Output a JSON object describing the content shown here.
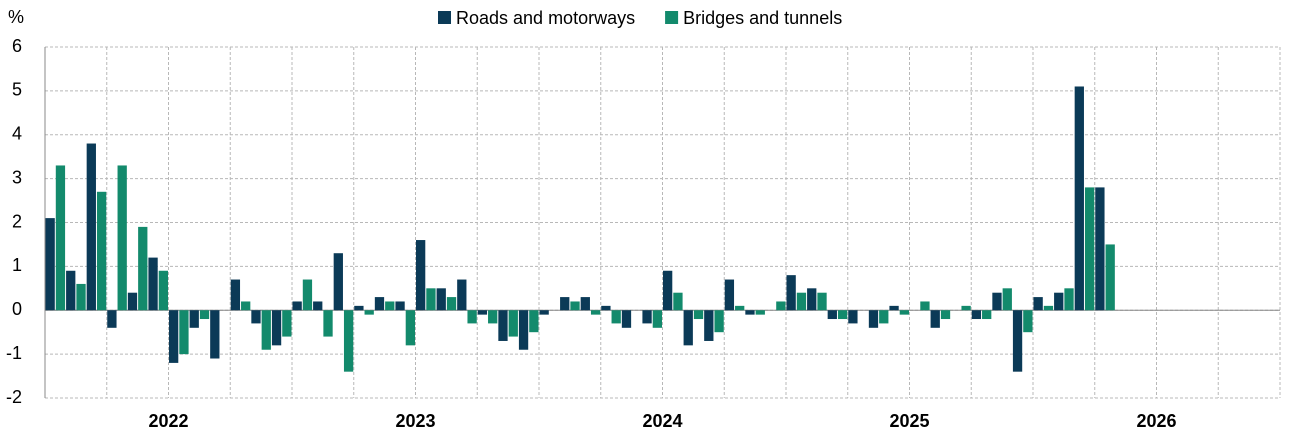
{
  "chart_data": {
    "type": "bar",
    "ylabel": "%",
    "categories": [
      null,
      null,
      null,
      null,
      null,
      null,
      null,
      null,
      null,
      null,
      null,
      null,
      null,
      null,
      null,
      null,
      null,
      null,
      null,
      null,
      null,
      null,
      null,
      null,
      null,
      null,
      null,
      null,
      null,
      null,
      null,
      null,
      null,
      null,
      null,
      null,
      null,
      null,
      null,
      null,
      null,
      null,
      null,
      null,
      null,
      null,
      null,
      null,
      null,
      null,
      null,
      null,
      null,
      null,
      null,
      null,
      null,
      null,
      null,
      null
    ],
    "year_labels": [
      "2022",
      "2023",
      "2024",
      "2025",
      "2026"
    ],
    "series": [
      {
        "name": "Roads and motorways",
        "color": "#0b3a57",
        "values": [
          2.1,
          0.9,
          3.8,
          -0.4,
          0.4,
          1.2,
          -1.2,
          -0.4,
          -1.1,
          0.7,
          -0.3,
          -0.8,
          0.2,
          0.2,
          1.3,
          0.1,
          0.3,
          0.2,
          1.6,
          0.5,
          0.7,
          -0.1,
          -0.7,
          -0.9,
          -0.1,
          0.3,
          0.3,
          0.1,
          -0.4,
          -0.3,
          0.9,
          -0.8,
          -0.7,
          0.7,
          -0.1,
          0,
          0.8,
          0.5,
          -0.2,
          -0.3,
          -0.4,
          0.1,
          0,
          -0.4,
          0,
          -0.2,
          0.4,
          -1.4,
          0.3,
          0.4,
          5.1,
          2.8,
          null,
          null,
          null,
          null,
          null,
          null,
          null,
          null
        ]
      },
      {
        "name": "Bridges and tunnels",
        "color": "#138a6c",
        "values": [
          3.3,
          0.6,
          2.7,
          3.3,
          1.9,
          0.9,
          -1.0,
          -0.2,
          0,
          0.2,
          -0.9,
          -0.6,
          0.7,
          -0.6,
          -1.4,
          -0.1,
          0.2,
          -0.8,
          0.5,
          0.3,
          -0.3,
          -0.3,
          -0.6,
          -0.5,
          0,
          0.2,
          -0.1,
          -0.3,
          0,
          -0.4,
          0.4,
          -0.2,
          -0.5,
          0.1,
          -0.1,
          0.2,
          0.4,
          0.4,
          -0.2,
          0,
          -0.3,
          -0.1,
          0.2,
          -0.2,
          0.1,
          -0.2,
          0.5,
          -0.5,
          0.1,
          0.5,
          2.8,
          1.5,
          null,
          null,
          null,
          null,
          null,
          null,
          null,
          null
        ]
      }
    ],
    "ylim": [
      -2,
      6
    ],
    "yticks": [
      -2,
      -1,
      0,
      1,
      2,
      3,
      4,
      5,
      6
    ],
    "grid": true,
    "legend": "top"
  }
}
